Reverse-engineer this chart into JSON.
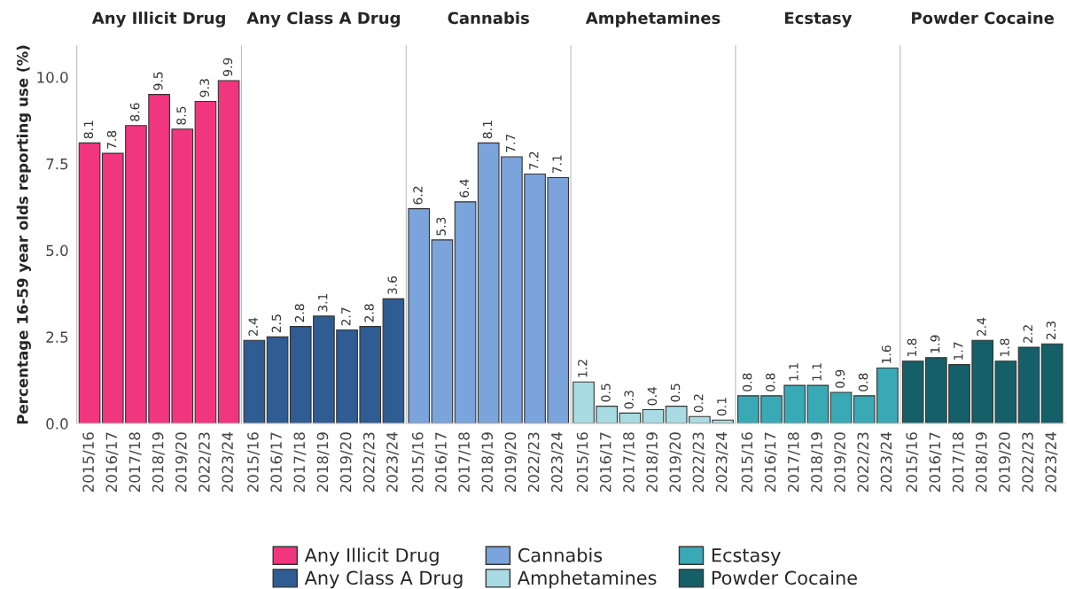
{
  "chart_data": [
    {
      "type": "bar",
      "title": "Any Illicit Drug",
      "ylabel": "Percentage 16-59 year olds reporting use (%)",
      "categories": [
        "2015/16",
        "2016/17",
        "2017/18",
        "2018/19",
        "2019/20",
        "2022/23",
        "2023/24"
      ],
      "series": [
        {
          "name": "Any Illicit Drug",
          "color": "#f2357f",
          "values": [
            8.1,
            7.8,
            8.6,
            9.5,
            8.5,
            9.3,
            9.9
          ]
        }
      ],
      "ylim": [
        0,
        10.9
      ],
      "yticks": [
        {
          "value": 0,
          "label": "0.0"
        },
        {
          "value": 2.5,
          "label": "2.5"
        },
        {
          "value": 5,
          "label": "5.0"
        },
        {
          "value": 7.5,
          "label": "7.5"
        },
        {
          "value": 10,
          "label": "10.0"
        }
      ],
      "data_labels": true,
      "legend": "bottom"
    },
    {
      "type": "bar",
      "title": "Any Class A Drug",
      "categories": [
        "2015/16",
        "2016/17",
        "2017/18",
        "2018/19",
        "2019/20",
        "2022/23",
        "2023/24"
      ],
      "series": [
        {
          "name": "Any Class A Drug",
          "color": "#2e5c93",
          "values": [
            2.4,
            2.5,
            2.8,
            3.1,
            2.7,
            2.8,
            3.6
          ]
        }
      ],
      "ylim": [
        0,
        10.9
      ],
      "tick_labels": "x",
      "data_labels": true,
      "legend": "bottom"
    },
    {
      "type": "bar",
      "title": "Cannabis",
      "categories": [
        "2015/16",
        "2016/17",
        "2017/18",
        "2018/19",
        "2019/20",
        "2022/23",
        "2023/24"
      ],
      "series": [
        {
          "name": "Cannabis",
          "color": "#7ba3dc",
          "values": [
            6.2,
            5.3,
            6.4,
            8.1,
            7.7,
            7.2,
            7.1
          ]
        }
      ],
      "ylim": [
        0,
        10.9
      ],
      "tick_labels": "x",
      "data_labels": true,
      "legend": "bottom"
    },
    {
      "type": "bar",
      "title": "Amphetamines",
      "categories": [
        "2015/16",
        "2016/17",
        "2017/18",
        "2018/19",
        "2019/20",
        "2022/23",
        "2023/24"
      ],
      "series": [
        {
          "name": "Amphetamines",
          "color": "#a8dbe3",
          "values": [
            1.2,
            0.5,
            0.3,
            0.4,
            0.5,
            0.2,
            0.1
          ]
        }
      ],
      "ylim": [
        0,
        10.9
      ],
      "tick_labels": "x",
      "data_labels": true,
      "legend": "bottom"
    },
    {
      "type": "bar",
      "title": "Ecstasy",
      "categories": [
        "2015/16",
        "2016/17",
        "2017/18",
        "2018/19",
        "2019/20",
        "2022/23",
        "2023/24"
      ],
      "series": [
        {
          "name": "Ecstasy",
          "color": "#3aa9b6",
          "values": [
            0.8,
            0.8,
            1.1,
            1.1,
            0.9,
            0.8,
            1.6
          ]
        }
      ],
      "ylim": [
        0,
        10.9
      ],
      "tick_labels": "x",
      "data_labels": true,
      "legend": "bottom"
    },
    {
      "type": "bar",
      "title": "Powder Cocaine",
      "categories": [
        "2015/16",
        "2016/17",
        "2017/18",
        "2018/19",
        "2019/20",
        "2022/23",
        "2023/24"
      ],
      "series": [
        {
          "name": "Powder Cocaine",
          "color": "#155f68",
          "values": [
            1.8,
            1.9,
            1.7,
            2.4,
            1.8,
            2.2,
            2.3
          ]
        }
      ],
      "ylim": [
        0,
        10.9
      ],
      "tick_labels": "x",
      "data_labels": true,
      "legend": "bottom"
    }
  ]
}
